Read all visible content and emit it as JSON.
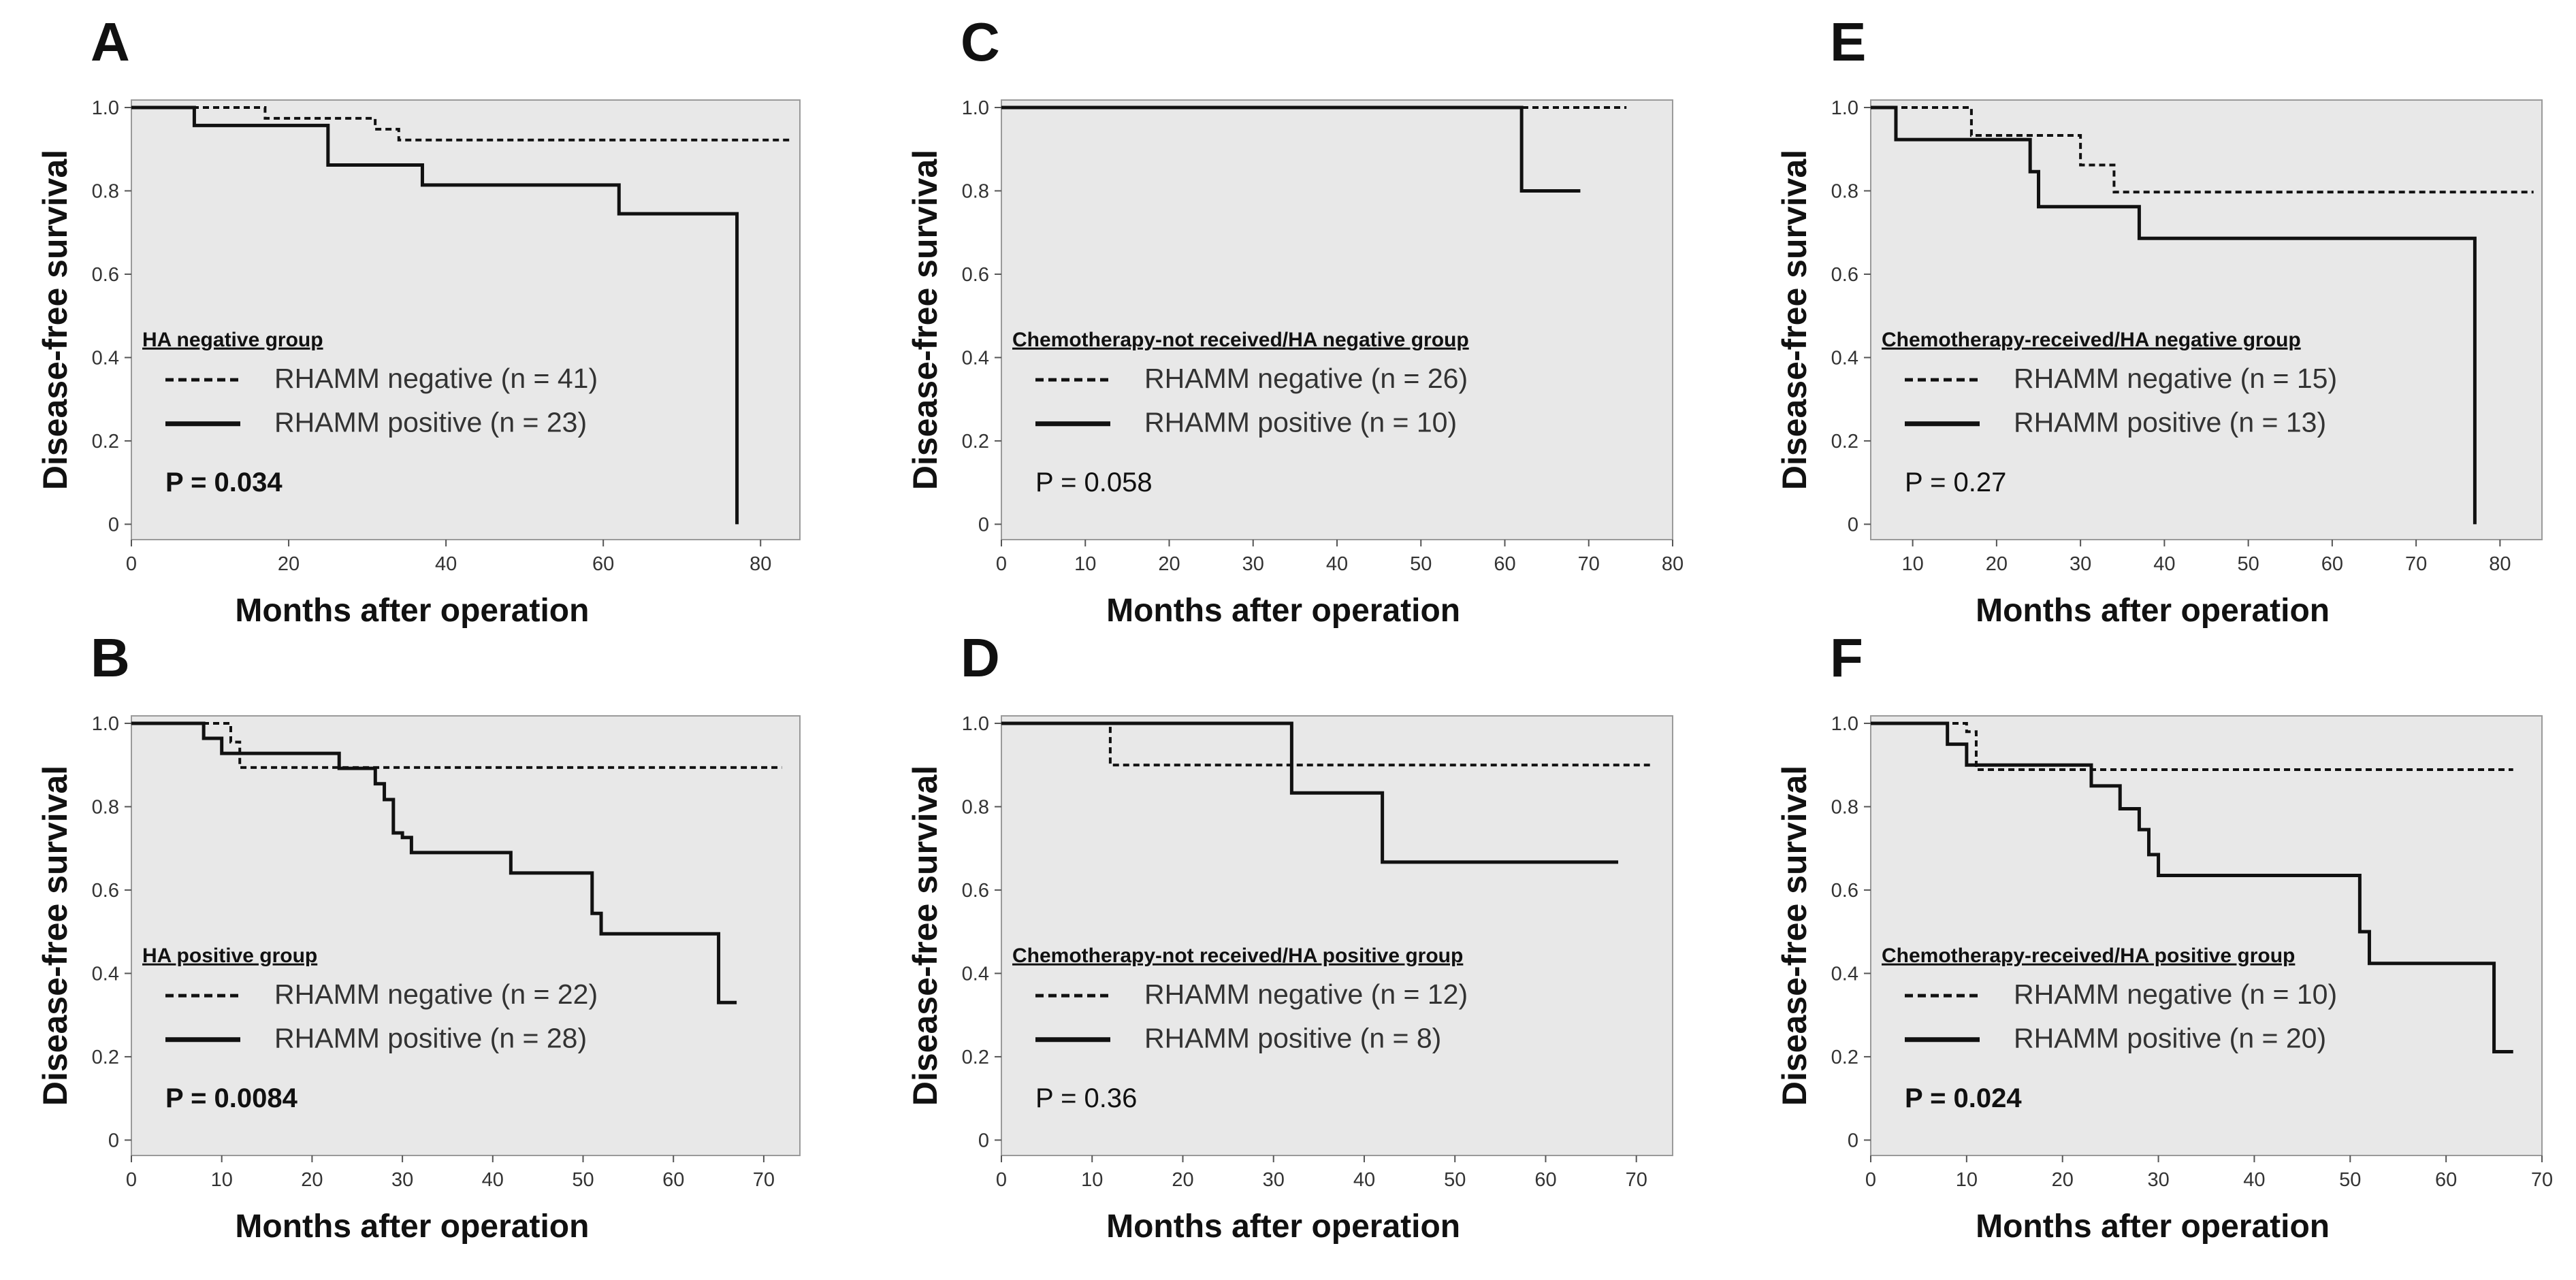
{
  "chart_data": [
    {
      "panel": "A",
      "type": "line",
      "subtype": "kaplan-meier",
      "ylabel": "Disease-free survival",
      "xlabel": "Months after operation",
      "xlim": [
        0,
        85
      ],
      "ylim": [
        0,
        1.0
      ],
      "xticks": [
        0,
        20,
        40,
        60,
        80
      ],
      "yticks": [
        0,
        0.2,
        0.4,
        0.6,
        0.8,
        1.0
      ],
      "group_label": "HA negative group",
      "p_value": "P = 0.034",
      "p_bold": true,
      "series": [
        {
          "name": "RHAMM negative (n = 41)",
          "style": "dashed",
          "x": [
            0,
            17,
            24,
            31,
            34,
            84
          ],
          "y": [
            1.0,
            0.974,
            0.974,
            0.948,
            0.922,
            0.922
          ]
        },
        {
          "name": "RHAMM positive (n = 23)",
          "style": "solid",
          "x": [
            0,
            8,
            24,
            25,
            37,
            62,
            77,
            77
          ],
          "y": [
            1.0,
            0.957,
            0.957,
            0.862,
            0.814,
            0.745,
            0.745,
            0.0
          ]
        }
      ]
    },
    {
      "panel": "B",
      "type": "line",
      "subtype": "kaplan-meier",
      "ylabel": "Disease-free survival",
      "xlabel": "Months after operation",
      "xlim": [
        0,
        74
      ],
      "ylim": [
        0,
        1.0
      ],
      "xticks": [
        0,
        10,
        20,
        30,
        40,
        50,
        60,
        70
      ],
      "yticks": [
        0,
        0.2,
        0.4,
        0.6,
        0.8,
        1.0
      ],
      "group_label": "HA positive group",
      "p_value": "P = 0.0084",
      "p_bold": true,
      "series": [
        {
          "name": "RHAMM negative (n = 22)",
          "style": "dashed",
          "x": [
            0,
            11,
            12,
            72
          ],
          "y": [
            1.0,
            0.955,
            0.894,
            0.894
          ]
        },
        {
          "name": "RHAMM positive (n = 28)",
          "style": "solid",
          "x": [
            0,
            8,
            10,
            12,
            23,
            27,
            28,
            29,
            30,
            31,
            32,
            42,
            51,
            52,
            65,
            67
          ],
          "y": [
            1.0,
            0.964,
            0.928,
            0.928,
            0.892,
            0.855,
            0.817,
            0.737,
            0.726,
            0.69,
            0.69,
            0.641,
            0.544,
            0.495,
            0.33,
            0.33
          ]
        }
      ]
    },
    {
      "panel": "C",
      "type": "line",
      "subtype": "kaplan-meier",
      "ylabel": "Disease-free survival",
      "xlabel": "Months after operation",
      "xlim": [
        0,
        80
      ],
      "ylim": [
        0,
        1.0
      ],
      "xticks": [
        0,
        10,
        20,
        30,
        40,
        50,
        60,
        70,
        80
      ],
      "yticks": [
        0,
        0.2,
        0.4,
        0.6,
        0.8,
        1.0
      ],
      "group_label": "Chemotherapy-not   received/HA negative group",
      "p_value": "P = 0.058",
      "p_bold": false,
      "series": [
        {
          "name": "RHAMM negative (n = 26)",
          "style": "dashed",
          "x": [
            0,
            74.5
          ],
          "y": [
            1.0,
            1.0
          ]
        },
        {
          "name": "RHAMM positive (n = 10)",
          "style": "solid",
          "x": [
            0,
            62,
            69
          ],
          "y": [
            1.0,
            0.8,
            0.8
          ]
        }
      ]
    },
    {
      "panel": "D",
      "type": "line",
      "subtype": "kaplan-meier",
      "ylabel": "Disease-free survival",
      "xlabel": "Months after operation",
      "xlim": [
        0,
        74
      ],
      "ylim": [
        0,
        1.0
      ],
      "xticks": [
        0,
        10,
        20,
        30,
        40,
        50,
        60,
        70
      ],
      "yticks": [
        0,
        0.2,
        0.4,
        0.6,
        0.8,
        1.0
      ],
      "group_label": "Chemotherapy-not   received/HA positive group",
      "p_value": "P = 0.36",
      "p_bold": false,
      "series": [
        {
          "name": "RHAMM negative (n = 12)",
          "style": "dashed",
          "x": [
            0,
            12,
            71.5
          ],
          "y": [
            1.0,
            0.9,
            0.9
          ]
        },
        {
          "name": "RHAMM positive (n = 8)",
          "style": "solid",
          "x": [
            0,
            32,
            42,
            68
          ],
          "y": [
            1.0,
            0.833,
            0.667,
            0.667
          ]
        }
      ]
    },
    {
      "panel": "E",
      "type": "line",
      "subtype": "kaplan-meier",
      "ylabel": "Disease-free survival",
      "xlabel": "Months after operation",
      "xlim": [
        5,
        85
      ],
      "ylim": [
        0,
        1.0
      ],
      "xticks": [
        10,
        20,
        30,
        40,
        50,
        60,
        70,
        80
      ],
      "yticks": [
        0,
        0.2,
        0.4,
        0.6,
        0.8,
        1.0
      ],
      "group_label": "Chemotherapy-received/HA   negative group",
      "p_value": "P = 0.27",
      "p_bold": false,
      "series": [
        {
          "name": "RHAMM negative (n = 15)",
          "style": "dashed",
          "x": [
            5,
            17,
            23,
            30,
            34,
            84
          ],
          "y": [
            1.0,
            0.933,
            0.933,
            0.862,
            0.797,
            0.797
          ]
        },
        {
          "name": "RHAMM positive (n = 13)",
          "style": "solid",
          "x": [
            5,
            8,
            24,
            25,
            37,
            77,
            77
          ],
          "y": [
            1.0,
            0.923,
            0.846,
            0.762,
            0.686,
            0.686,
            0.0
          ]
        }
      ]
    },
    {
      "panel": "F",
      "type": "line",
      "subtype": "kaplan-meier",
      "ylabel": "Disease-free survival",
      "xlabel": "Months after operation",
      "xlim": [
        0,
        70
      ],
      "ylim": [
        0,
        1.0
      ],
      "xticks": [
        0,
        10,
        20,
        30,
        40,
        50,
        60,
        70
      ],
      "yticks": [
        0,
        0.2,
        0.4,
        0.6,
        0.8,
        1.0
      ],
      "group_label": "Chemotherapy-received/HA   positive group",
      "p_value": "P = 0.024",
      "p_bold": true,
      "series": [
        {
          "name": "RHAMM negative (n = 10)",
          "style": "dashed",
          "x": [
            0,
            10,
            11,
            67
          ],
          "y": [
            1.0,
            0.98,
            0.889,
            0.889
          ]
        },
        {
          "name": "RHAMM positive (n = 20)",
          "style": "solid",
          "x": [
            0,
            8,
            10,
            12,
            23,
            26,
            28,
            29,
            30,
            51,
            52,
            65,
            67
          ],
          "y": [
            1.0,
            0.95,
            0.9,
            0.9,
            0.85,
            0.795,
            0.745,
            0.685,
            0.635,
            0.5,
            0.424,
            0.212,
            0.212
          ]
        }
      ]
    }
  ]
}
